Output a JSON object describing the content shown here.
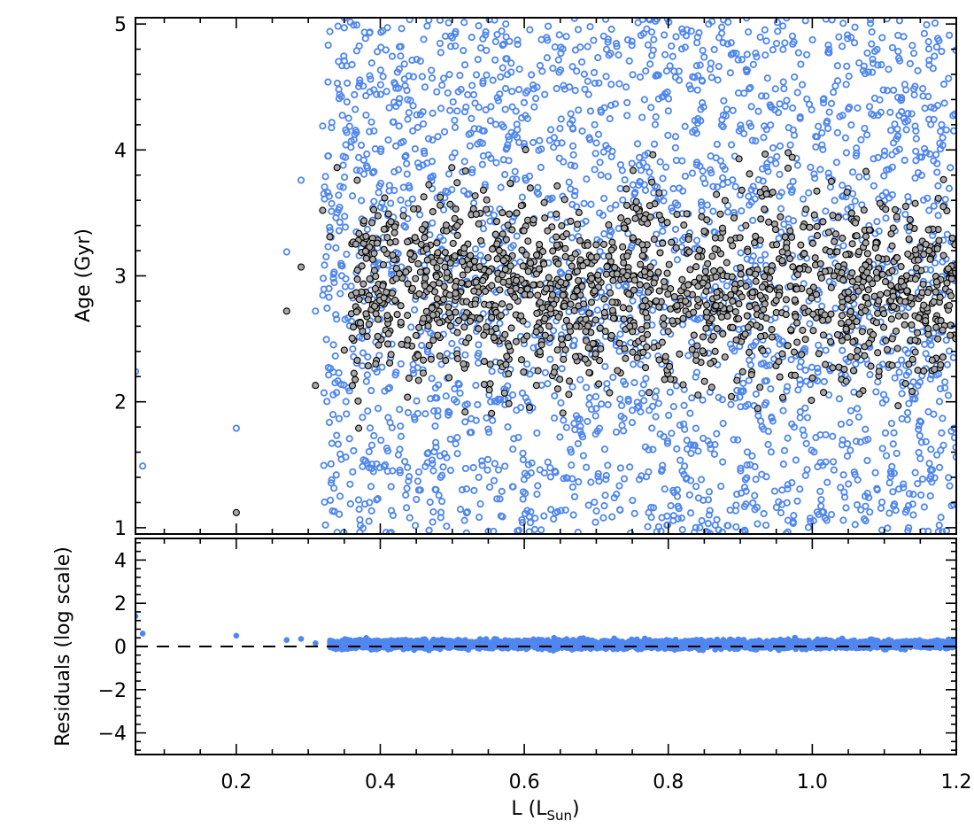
{
  "chart_data": [
    {
      "type": "scatter",
      "title": "",
      "xlabel": "L",
      "xlabel_sub": "Sun",
      "ylabel": "Age (Gyr)",
      "xlim": [
        0.06,
        1.2
      ],
      "ylim": [
        0.95,
        5.05
      ],
      "xticks": [
        0.2,
        0.4,
        0.6,
        0.8,
        1.0,
        1.2
      ],
      "xtick_labels": [
        "",
        "",
        "",
        "",
        "",
        ""
      ],
      "yticks": [
        1,
        2,
        3,
        4,
        5
      ],
      "ytick_labels": [
        "1",
        "2",
        "3",
        "4",
        "5"
      ],
      "series": [
        {
          "marker": "open circle",
          "color": "#4f86ef",
          "values": [
            [
              0.06,
              2.24
            ],
            [
              0.07,
              1.49
            ],
            [
              0.2,
              1.79
            ],
            [
              0.27,
              3.19
            ],
            [
              0.29,
              3.76
            ],
            [
              0.31,
              2.72
            ],
            [
              0.32,
              4.19
            ],
            [
              0.33,
              4.94
            ],
            [
              0.34,
              3.5
            ],
            [
              0.35,
              4.97
            ],
            [
              0.36,
              2.64
            ],
            [
              0.37,
              3.94
            ],
            [
              0.38,
              4.43
            ],
            [
              0.385,
              1.2
            ]
          ],
          "fill": "none"
        },
        {
          "marker": "filled circle",
          "color": "#a8a8a8",
          "edge": "#000000",
          "values": [
            [
              0.2,
              1.12
            ],
            [
              0.27,
              2.72
            ],
            [
              0.29,
              3.07
            ],
            [
              0.31,
              2.13
            ],
            [
              0.32,
              3.52
            ],
            [
              0.33,
              3.31
            ],
            [
              0.34,
              3.86
            ],
            [
              0.35,
              2.41
            ],
            [
              0.36,
              2.7
            ],
            [
              0.37,
              1.79
            ],
            [
              0.38,
              2.87
            ]
          ]
        }
      ],
      "dense_cloud": {
        "x_range": [
          0.32,
          1.2
        ],
        "y_range": [
          0.95,
          5.05
        ],
        "open_count": 2600,
        "filled_count": 1500,
        "filled_y_range": [
          1.0,
          4.95
        ]
      }
    },
    {
      "type": "scatter",
      "title": "",
      "xlabel": "L",
      "xlabel_sub": "Sun",
      "ylabel": "Residuals (log scale)",
      "xlim": [
        0.06,
        1.2
      ],
      "ylim": [
        -5,
        5
      ],
      "xticks": [
        0.2,
        0.4,
        0.6,
        0.8,
        1.0,
        1.2
      ],
      "xtick_labels": [
        "0.2",
        "0.4",
        "0.6",
        "0.8",
        "1.0",
        "1.2"
      ],
      "yticks": [
        -4,
        -2,
        0,
        2,
        4
      ],
      "ytick_labels": [
        "−4",
        "−2",
        "0",
        "2",
        "4"
      ],
      "reference_line": {
        "y": 0,
        "style": "dashed",
        "color": "#000000"
      },
      "series": [
        {
          "marker": "filled dot",
          "color": "#4f86ef",
          "values": [
            [
              0.06,
              1.4
            ],
            [
              0.07,
              0.6
            ],
            [
              0.2,
              0.5
            ],
            [
              0.27,
              0.3
            ],
            [
              0.29,
              0.35
            ],
            [
              0.31,
              0.15
            ],
            [
              0.33,
              0.2
            ]
          ]
        }
      ],
      "dense_band": {
        "x_range": [
          0.3,
          1.2
        ],
        "y_center": 0.1,
        "y_spread": 0.35,
        "count": 3200
      }
    }
  ]
}
